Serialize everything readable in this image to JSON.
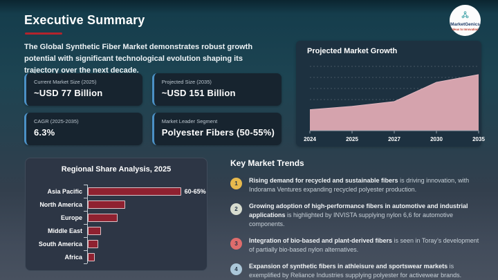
{
  "slide": {
    "title": "Executive Summary",
    "intro": "The Global Synthetic Fiber Market demonstrates robust growth potential with significant technological evolution shaping its trajectory over the next decade."
  },
  "logo": {
    "icon": "molecule-network-icon",
    "name": "MarketGenics",
    "tagline": "Ideas to Innovation"
  },
  "stats": [
    {
      "label": "Current Market Size (2025)",
      "value": "~USD 77 Billion"
    },
    {
      "label": "Projected Size (2035)",
      "value": "~USD 151 Billion"
    },
    {
      "label": "CAGR (2025-2035)",
      "value": "6.3%"
    },
    {
      "label": "Market Leader Segment",
      "value": "Polyester Fibers (50-55%)"
    }
  ],
  "chart_data": [
    {
      "type": "area",
      "title": "Projected Market Growth",
      "x": [
        "2024",
        "2025",
        "2027",
        "2030",
        "2035"
      ],
      "values": [
        69,
        77,
        88,
        133,
        151
      ],
      "ylim": [
        20,
        175
      ],
      "grid": "horizontal-dashed",
      "xlabel": "",
      "ylabel": "",
      "fill_color": "#d5a3ad",
      "edge_color": "#e2b6c0"
    },
    {
      "type": "bar",
      "title": "Regional Share Analysis, 2025",
      "orientation": "horizontal",
      "categories": [
        "Asia Pacific",
        "North America",
        "Europe",
        "Middle East",
        "South America",
        "Africa"
      ],
      "values": [
        62.5,
        25,
        20,
        9,
        7,
        4.5
      ],
      "data_labels": [
        "60-65%",
        "",
        "",
        "",
        "",
        ""
      ],
      "xlim": [
        0,
        65
      ],
      "bar_color": "#8f2130",
      "legend": "none"
    }
  ],
  "trends": {
    "title": "Key Market Trends",
    "items": [
      {
        "num": "1",
        "color": "#e7b94d",
        "lead": "Rising demand for recycled and sustainable fibers",
        "rest": " is driving innovation, with Indorama Ventures expanding recycled polyester production."
      },
      {
        "num": "2",
        "color": "#d7dccf",
        "lead": "Growing adoption of high-performance fibers in automotive and industrial applications",
        "rest": " is highlighted by INVISTA supplying nylon 6,6 for automotive components."
      },
      {
        "num": "3",
        "color": "#de6c6c",
        "lead": "Integration of bio-based and plant-derived fibers",
        "rest": " is seen in Toray’s development of partially bio-based nylon alternatives."
      },
      {
        "num": "4",
        "color": "#abc7d9",
        "lead": "Expansion of synthetic fibers in athleisure and sportswear markets",
        "rest": " is exemplified by Reliance Industries supplying polyester for activewear brands."
      }
    ]
  },
  "colors": {
    "accent_red": "#b3242c",
    "card_border_blue": "#4b90c5",
    "card_bg": "#17242f",
    "growth_panel_bg": "#1d3140",
    "regional_panel_bg": "#2d3645",
    "area_fill": "#d5a3ad",
    "bar_fill": "#8f2130"
  }
}
